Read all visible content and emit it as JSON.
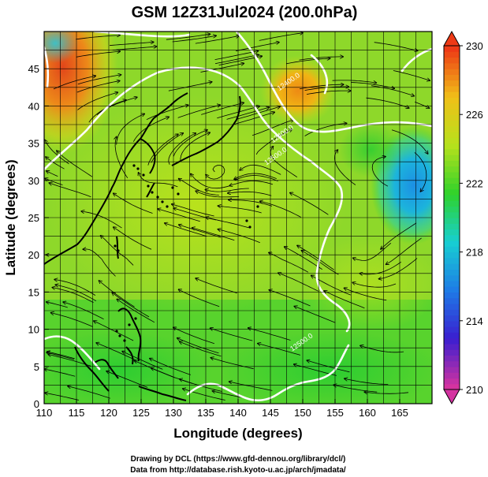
{
  "title": "GSM 12Z31Jul2024 (200.0hPa)",
  "xlabel": "Longitude (degrees)",
  "ylabel": "Latitude  (degrees)",
  "credits": {
    "line1": "Drawing by DCL (https://www.gfd-dennou.org/library/dcl/)",
    "line2": "Data from http://database.rish.kyoto-u.ac.jp/arch/jmadata/"
  },
  "map": {
    "lon_range": [
      110,
      170
    ],
    "lat_range": [
      0,
      50
    ],
    "lon_ticks": [
      110,
      115,
      120,
      125,
      130,
      135,
      140,
      145,
      150,
      155,
      160,
      165
    ],
    "lat_ticks": [
      0,
      5,
      10,
      15,
      20,
      25,
      30,
      35,
      40,
      45
    ],
    "grid_step_deg": 2.5
  },
  "colorbar": {
    "min": 210,
    "max": 230,
    "tick_values": [
      210,
      214,
      218,
      222,
      226,
      230
    ],
    "tick_labels": [
      "210",
      "214",
      "218",
      "222",
      "226",
      "230"
    ],
    "colors": [
      "#d433a0",
      "#3a1ed0",
      "#1e7ce6",
      "#17cfd2",
      "#2fd22a",
      "#b6e11c",
      "#f0c018",
      "#ee3a16"
    ]
  },
  "contour_labels": [
    {
      "text": "12400.0",
      "lon": 147,
      "lat": 36
    },
    {
      "text": "12500.0",
      "lon": 146,
      "lat": 33
    },
    {
      "text": "12400.0",
      "lon": 148,
      "lat": 43
    },
    {
      "text": "12500.0",
      "lon": 150,
      "lat": 8
    }
  ],
  "fields": {
    "temperature_hotspots": [
      {
        "lon": 113,
        "lat": 43,
        "value": 229
      },
      {
        "lon": 148,
        "lat": 43,
        "value": 227
      },
      {
        "lon": 168,
        "lat": 30,
        "value": 218
      },
      {
        "lon": 164,
        "lat": 34,
        "value": 220
      },
      {
        "lon": 130,
        "lat": 26,
        "value": 224
      },
      {
        "lon": 125,
        "lat": 10,
        "value": 222.5
      },
      {
        "lon": 155,
        "lat": 15,
        "value": 223
      },
      {
        "lon": 110,
        "lat": 50,
        "value": 219
      }
    ]
  }
}
